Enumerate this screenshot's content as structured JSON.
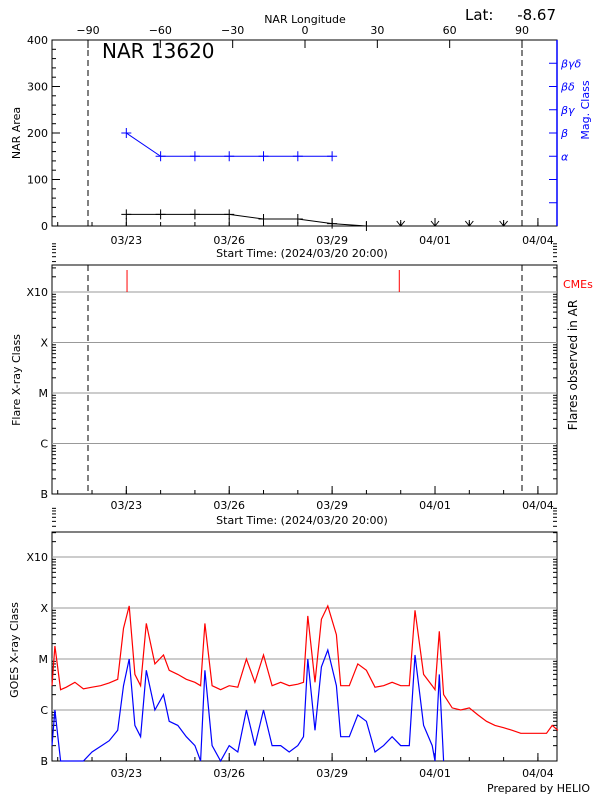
{
  "colors": {
    "area": "#000000",
    "mag_class": "#0000ff",
    "goes_long": "#ff0000",
    "goes_short": "#0000ff",
    "cme": "#ff0000",
    "grid": "#999999"
  },
  "chart_data": [
    {
      "type": "line",
      "panel": "nar",
      "title": "NAR 13620",
      "lat_label": "Lat:",
      "lat_value": "-8.67",
      "top_axis_label": "NAR Longitude",
      "top_ticks": [
        "-90",
        "-60",
        "-30",
        "0",
        "30",
        "60",
        "90"
      ],
      "ylabel": "NAR Area",
      "ylim": [
        0,
        400
      ],
      "yticks": [
        "0",
        "100",
        "200",
        "300",
        "400"
      ],
      "right_label": "Mag. Class",
      "mag_classes": [
        "α",
        "β",
        "βγ",
        "βδ",
        "βγδ"
      ],
      "xticks": [
        "03/23",
        "03/26",
        "03/29",
        "04/01",
        "04/04"
      ],
      "xlabel": "Start Time: (2024/03/20 20:00)",
      "limb_longitudes": [
        -90,
        90
      ],
      "series": [
        {
          "key": "area",
          "x": [
            "2024-03-23T00:00",
            "2024-03-24T00:00",
            "2024-03-25T00:00",
            "2024-03-26T00:00",
            "2024-03-27T00:00",
            "2024-03-28T00:00",
            "2024-03-29T00:00",
            "2024-03-30T00:00",
            "2024-03-31T00:00",
            "2024-04-01T00:00",
            "2024-04-02T00:00",
            "2024-04-03T00:00"
          ],
          "values": [
            25,
            25,
            25,
            25,
            15,
            15,
            5,
            0,
            0,
            0,
            0,
            0
          ]
        },
        {
          "key": "mag_class",
          "x": [
            "2024-03-23T00:00",
            "2024-03-24T00:00",
            "2024-03-25T00:00",
            "2024-03-26T00:00",
            "2024-03-27T00:00",
            "2024-03-28T00:00",
            "2024-03-29T00:00"
          ],
          "values": [
            "β",
            "α",
            "α",
            "α",
            "α",
            "α",
            "α"
          ]
        }
      ]
    },
    {
      "type": "scatter",
      "panel": "flares",
      "ylabel": "Flare X-ray Class",
      "right_label": "Flares observed in AR",
      "yticks": [
        "B",
        "C",
        "M",
        "X",
        "X10"
      ],
      "xticks": [
        "03/23",
        "03/26",
        "03/29",
        "04/01",
        "04/04"
      ],
      "xlabel": "Start Time: (2024/03/20 20:00)",
      "cme_label": "CMEs",
      "cmes": [
        "2024-03-23T00:30",
        "2024-03-30T23:00"
      ],
      "flares": []
    },
    {
      "type": "line",
      "panel": "goes",
      "ylabel": "GOES X-ray Class",
      "yscale": "log",
      "ylim_flux": [
        1e-07,
        0.003
      ],
      "yticks": [
        "B",
        "C",
        "M",
        "X",
        "X10"
      ],
      "xticks": [
        "03/23",
        "03/26",
        "03/29",
        "04/01",
        "04/04"
      ],
      "credit": "Prepared by HELIO",
      "series": [
        {
          "key": "long",
          "points": [
            [
              "2024-03-20T20:00",
              3e-06
            ],
            [
              "2024-03-20T22:00",
              1.8e-05
            ],
            [
              "2024-03-21T02:00",
              2.5e-06
            ],
            [
              "2024-03-21T06:00",
              2.8e-06
            ],
            [
              "2024-03-21T12:00",
              3.5e-06
            ],
            [
              "2024-03-21T18:00",
              2.6e-06
            ],
            [
              "2024-03-22T00:00",
              2.8e-06
            ],
            [
              "2024-03-22T06:00",
              3e-06
            ],
            [
              "2024-03-22T12:00",
              3.4e-06
            ],
            [
              "2024-03-22T18:00",
              4e-06
            ],
            [
              "2024-03-22T22:00",
              4e-05
            ],
            [
              "2024-03-23T02:00",
              0.00011
            ],
            [
              "2024-03-23T06:00",
              5e-06
            ],
            [
              "2024-03-23T10:00",
              3e-06
            ],
            [
              "2024-03-23T14:00",
              5e-05
            ],
            [
              "2024-03-23T20:00",
              8e-06
            ],
            [
              "2024-03-24T02:00",
              1.2e-05
            ],
            [
              "2024-03-24T06:00",
              6e-06
            ],
            [
              "2024-03-24T12:00",
              5e-06
            ],
            [
              "2024-03-24T18:00",
              4e-06
            ],
            [
              "2024-03-25T00:00",
              3.5e-06
            ],
            [
              "2024-03-25T04:00",
              3e-06
            ],
            [
              "2024-03-25T07:00",
              5e-05
            ],
            [
              "2024-03-25T12:00",
              3e-06
            ],
            [
              "2024-03-25T18:00",
              2.5e-06
            ],
            [
              "2024-03-26T00:00",
              3e-06
            ],
            [
              "2024-03-26T06:00",
              2.8e-06
            ],
            [
              "2024-03-26T12:00",
              1e-05
            ],
            [
              "2024-03-26T18:00",
              3.5e-06
            ],
            [
              "2024-03-27T00:00",
              1.2e-05
            ],
            [
              "2024-03-27T06:00",
              3e-06
            ],
            [
              "2024-03-27T12:00",
              3.5e-06
            ],
            [
              "2024-03-27T18:00",
              3e-06
            ],
            [
              "2024-03-28T00:00",
              3.2e-06
            ],
            [
              "2024-03-28T04:00",
              3.5e-06
            ],
            [
              "2024-03-28T07:00",
              7e-05
            ],
            [
              "2024-03-28T12:00",
              3.5e-06
            ],
            [
              "2024-03-28T16:30",
              6e-05
            ],
            [
              "2024-03-28T21:00",
              0.00011
            ],
            [
              "2024-03-29T03:00",
              3e-05
            ],
            [
              "2024-03-29T06:00",
              3e-06
            ],
            [
              "2024-03-29T12:00",
              3e-06
            ],
            [
              "2024-03-29T18:00",
              8e-06
            ],
            [
              "2024-03-30T00:00",
              6e-06
            ],
            [
              "2024-03-30T06:00",
              2.8e-06
            ],
            [
              "2024-03-30T12:00",
              3e-06
            ],
            [
              "2024-03-30T18:00",
              3.5e-06
            ],
            [
              "2024-03-31T00:00",
              3e-06
            ],
            [
              "2024-03-31T06:00",
              3e-06
            ],
            [
              "2024-03-31T10:00",
              9e-05
            ],
            [
              "2024-03-31T16:00",
              5e-06
            ],
            [
              "2024-03-31T22:00",
              3e-06
            ],
            [
              "2024-04-01T00:00",
              2.5e-06
            ],
            [
              "2024-04-01T03:00",
              3.5e-05
            ],
            [
              "2024-04-01T06:00",
              2e-06
            ],
            [
              "2024-04-01T12:00",
              1.1e-06
            ],
            [
              "2024-04-01T18:00",
              1e-06
            ],
            [
              "2024-04-02T00:00",
              1.1e-06
            ],
            [
              "2024-04-02T06:00",
              8e-07
            ],
            [
              "2024-04-02T12:00",
              6e-07
            ],
            [
              "2024-04-02T18:00",
              5e-07
            ],
            [
              "2024-04-03T00:00",
              4.5e-07
            ],
            [
              "2024-04-03T06:00",
              4e-07
            ],
            [
              "2024-04-03T12:00",
              3.5e-07
            ],
            [
              "2024-04-03T18:00",
              3.5e-07
            ],
            [
              "2024-04-04T00:00",
              3.5e-07
            ],
            [
              "2024-04-04T06:00",
              3.5e-07
            ],
            [
              "2024-04-04T10:00",
              5e-07
            ],
            [
              "2024-04-04T14:00",
              4e-07
            ]
          ]
        },
        {
          "key": "short",
          "points": [
            [
              "2024-03-20T20:00",
              2e-07
            ],
            [
              "2024-03-20T22:00",
              1e-06
            ],
            [
              "2024-03-21T02:00",
              1e-07
            ],
            [
              "2024-03-21T18:00",
              1e-07
            ],
            [
              "2024-03-22T00:00",
              1.5e-07
            ],
            [
              "2024-03-22T12:00",
              2.5e-07
            ],
            [
              "2024-03-22T18:00",
              4e-07
            ],
            [
              "2024-03-22T22:00",
              3e-06
            ],
            [
              "2024-03-23T02:00",
              1e-05
            ],
            [
              "2024-03-23T06:00",
              5e-07
            ],
            [
              "2024-03-23T10:00",
              3e-07
            ],
            [
              "2024-03-23T14:00",
              6e-06
            ],
            [
              "2024-03-23T20:00",
              1e-06
            ],
            [
              "2024-03-24T02:00",
              2e-06
            ],
            [
              "2024-03-24T06:00",
              6e-07
            ],
            [
              "2024-03-24T12:00",
              5e-07
            ],
            [
              "2024-03-24T18:00",
              3e-07
            ],
            [
              "2024-03-25T00:00",
              2e-07
            ],
            [
              "2024-03-25T04:00",
              1e-07
            ],
            [
              "2024-03-25T07:00",
              6e-06
            ],
            [
              "2024-03-25T12:00",
              2e-07
            ],
            [
              "2024-03-25T18:00",
              1e-07
            ],
            [
              "2024-03-26T00:00",
              2e-07
            ],
            [
              "2024-03-26T06:00",
              1.5e-07
            ],
            [
              "2024-03-26T12:00",
              1e-06
            ],
            [
              "2024-03-26T18:00",
              2e-07
            ],
            [
              "2024-03-27T00:00",
              1e-06
            ],
            [
              "2024-03-27T06:00",
              2e-07
            ],
            [
              "2024-03-27T12:00",
              2e-07
            ],
            [
              "2024-03-27T18:00",
              1.5e-07
            ],
            [
              "2024-03-28T00:00",
              2e-07
            ],
            [
              "2024-03-28T04:00",
              3e-07
            ],
            [
              "2024-03-28T07:00",
              1e-05
            ],
            [
              "2024-03-28T12:00",
              4e-07
            ],
            [
              "2024-03-28T16:30",
              7e-06
            ],
            [
              "2024-03-28T21:00",
              1.5e-05
            ],
            [
              "2024-03-29T03:00",
              3e-06
            ],
            [
              "2024-03-29T06:00",
              3e-07
            ],
            [
              "2024-03-29T12:00",
              3e-07
            ],
            [
              "2024-03-29T18:00",
              8e-07
            ],
            [
              "2024-03-30T00:00",
              6e-07
            ],
            [
              "2024-03-30T06:00",
              1.5e-07
            ],
            [
              "2024-03-30T12:00",
              2e-07
            ],
            [
              "2024-03-30T18:00",
              3e-07
            ],
            [
              "2024-03-31T00:00",
              2e-07
            ],
            [
              "2024-03-31T06:00",
              2e-07
            ],
            [
              "2024-03-31T10:00",
              1.2e-05
            ],
            [
              "2024-03-31T16:00",
              5e-07
            ],
            [
              "2024-03-31T22:00",
              2e-07
            ],
            [
              "2024-04-01T00:00",
              1e-07
            ],
            [
              "2024-04-01T03:00",
              5e-06
            ],
            [
              "2024-04-01T06:00",
              1e-07
            ]
          ]
        }
      ]
    }
  ]
}
